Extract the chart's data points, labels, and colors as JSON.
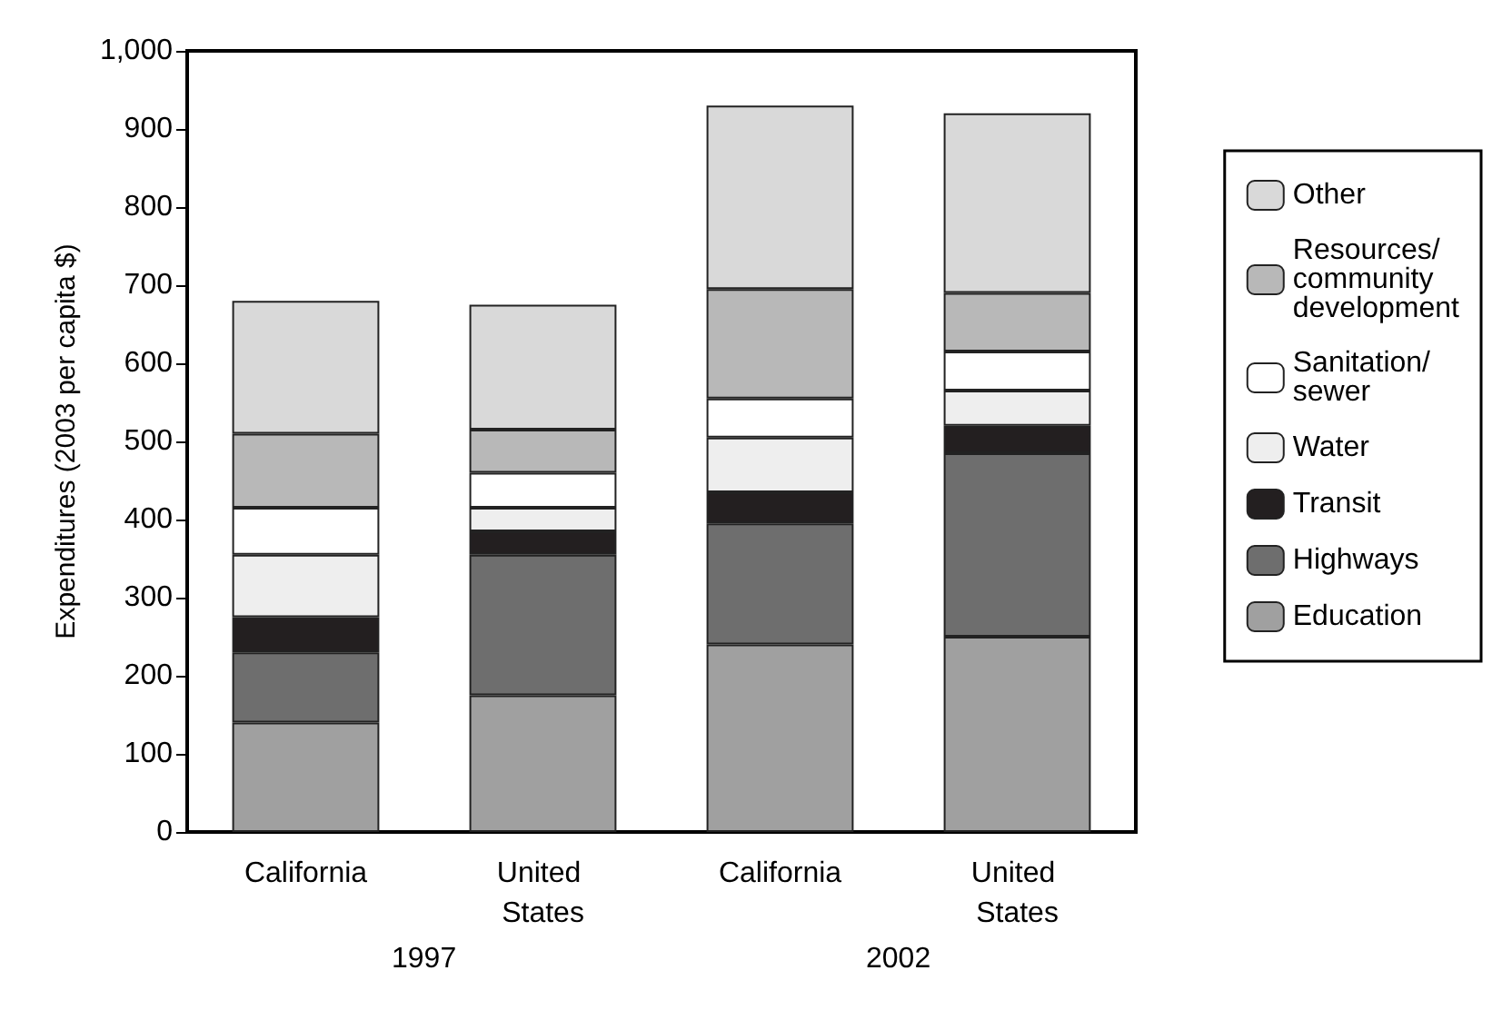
{
  "chart_data": {
    "type": "bar",
    "stacked": true,
    "ylabel": "Expenditures (2003 per capita $)",
    "categories": [
      "California",
      "United States",
      "California",
      "United States"
    ],
    "annotations": [
      "1997",
      "2002"
    ],
    "series": [
      {
        "name": "Education",
        "color": "#a0a0a0",
        "values": [
          140,
          175,
          240,
          250
        ]
      },
      {
        "name": "Highways",
        "color": "#6e6e6e",
        "values": [
          90,
          180,
          155,
          235
        ]
      },
      {
        "name": "Transit",
        "color": "#231f20",
        "values": [
          45,
          30,
          40,
          35
        ]
      },
      {
        "name": "Water",
        "color": "#eeeeee",
        "values": [
          80,
          30,
          70,
          45
        ]
      },
      {
        "name": "Sanitation/ sewer",
        "color": "#ffffff",
        "values": [
          60,
          45,
          50,
          50
        ]
      },
      {
        "name": "Resources/ community development",
        "color": "#b8b8b8",
        "values": [
          95,
          55,
          140,
          75
        ]
      },
      {
        "name": "Other",
        "color": "#d9d9d9",
        "values": [
          170,
          160,
          235,
          230
        ]
      }
    ],
    "ylim": [
      0,
      1000
    ],
    "yticks": [
      0,
      {
        "value": 100,
        "label": "100"
      },
      200,
      300,
      400,
      500,
      600,
      700,
      800,
      900,
      {
        "value": 1000,
        "label": "1,000"
      }
    ],
    "grid": false,
    "legend": "right"
  }
}
